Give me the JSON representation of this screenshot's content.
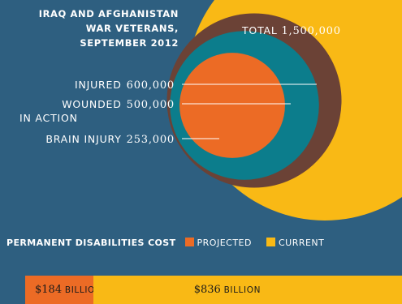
{
  "title_lines": [
    "IRAQ AND AFGHANISTAN",
    "WAR VETERANS,",
    "SEPTEMBER 2012"
  ],
  "chart_data": [
    {
      "type": "nested-circles",
      "unit": "veterans",
      "circles": [
        {
          "label": "TOTAL",
          "value": 1500000,
          "display": "1,500,000",
          "color": "#f9b915"
        },
        {
          "label": "INJURED",
          "value": 600000,
          "display": "600,000",
          "color": "#6b4236"
        },
        {
          "label": "WOUNDED IN ACTION",
          "label_lines": [
            "WOUNDED",
            "IN ACTION"
          ],
          "value": 500000,
          "display": "500,000",
          "color": "#0c7d8c"
        },
        {
          "label": "BRAIN INJURY",
          "value": 253000,
          "display": "253,000",
          "color": "#ec6b25"
        }
      ]
    },
    {
      "type": "bar",
      "stacked": true,
      "orientation": "horizontal",
      "title": "PERMANENT DISABILITIES COST",
      "unit": "BILLION",
      "series": [
        {
          "name": "PROJECTED",
          "value": 184,
          "display": "$184",
          "color": "#ec6b25"
        },
        {
          "name": "CURRENT",
          "value": 836,
          "display": "$836",
          "color": "#f9b915"
        }
      ]
    }
  ]
}
